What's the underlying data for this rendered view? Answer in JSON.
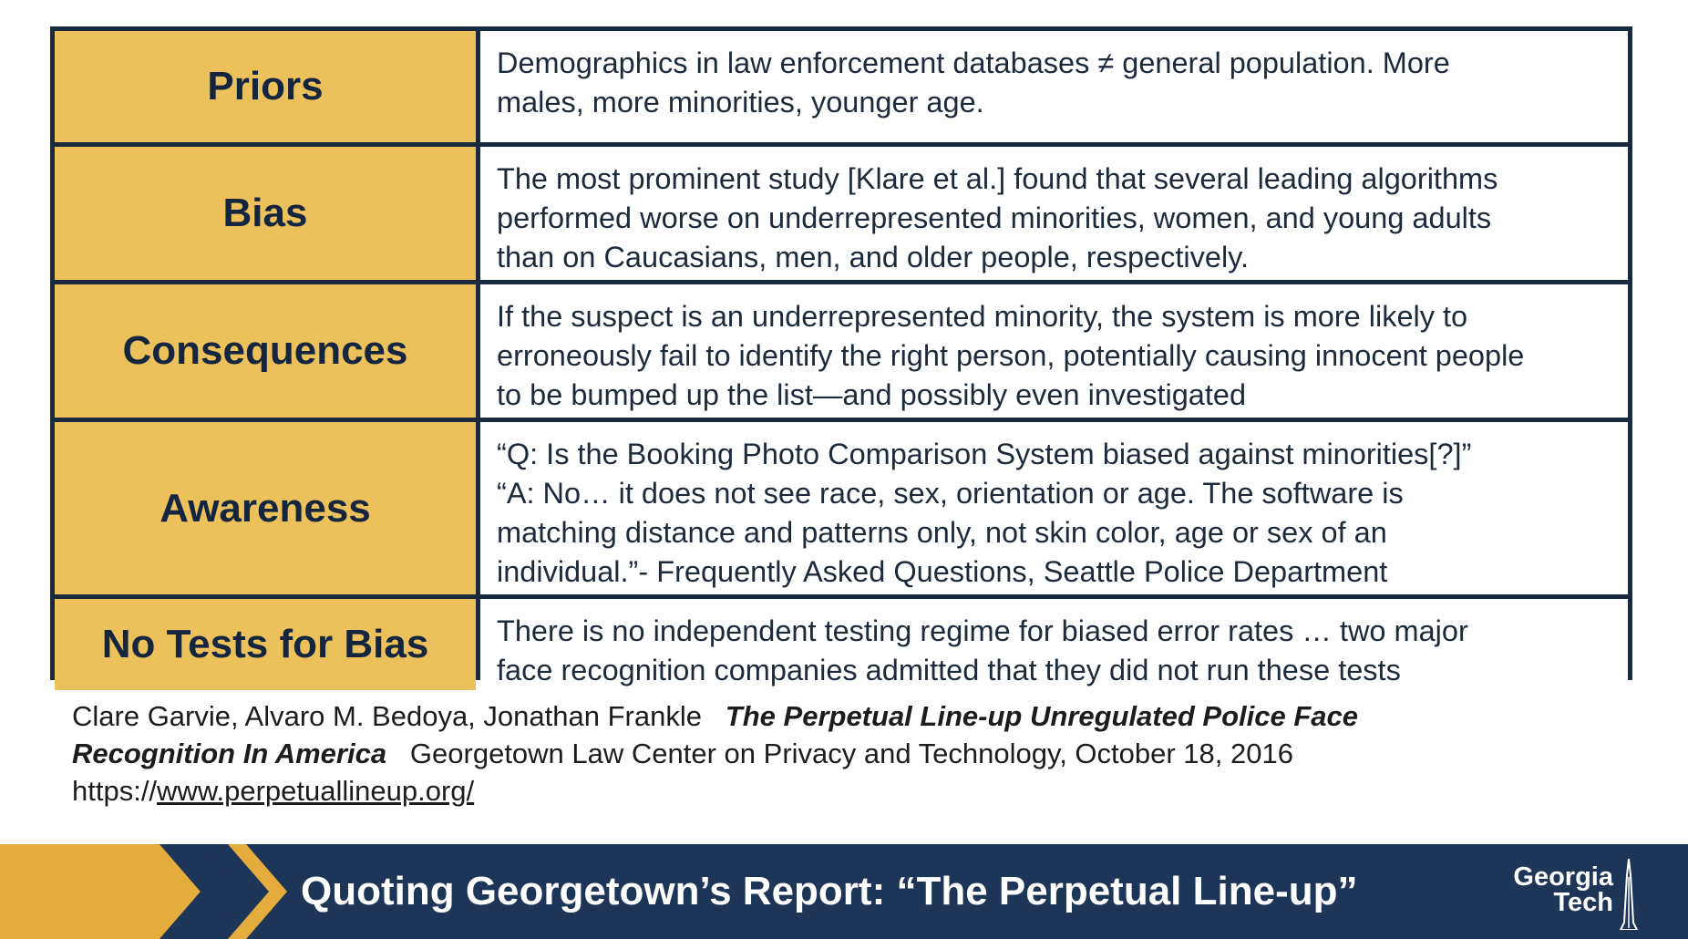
{
  "rows": [
    {
      "label": "Priors",
      "lines": [
        "Demographics in law enforcement databases ≠ general population. More",
        "males, more minorities, younger age."
      ]
    },
    {
      "label": "Bias",
      "lines": [
        "The most prominent study [Klare et al.] found that several leading algorithms",
        "performed worse on underrepresented minorities, women, and young adults",
        "than on Caucasians, men, and older people, respectively."
      ]
    },
    {
      "label": "Consequences",
      "lines": [
        "If the suspect is an underrepresented minority, the system is more likely to",
        "erroneously fail to identify the right person, potentially causing innocent people",
        "to be bumped up the list—and possibly even investigated"
      ]
    },
    {
      "label": "Awareness",
      "lines": [
        "“Q: Is the Booking Photo Comparison System biased against minorities[?]”",
        "“A: No… it does not see race, sex, orientation or age. The software is",
        "matching distance and patterns only,  not skin color, age or sex of an",
        "individual.”- Frequently Asked Questions, Seattle Police Department"
      ]
    },
    {
      "label": "No Tests for Bias",
      "lines": [
        "There is no independent testing regime for biased error rates … two major",
        "face recognition companies admitted that they did not run these tests"
      ]
    }
  ],
  "citation": {
    "authors": "Clare Garvie, Alvaro M. Bedoya, Jonathan Frankle",
    "title_part1": "The Perpetual Line-up Unregulated Police Face",
    "title_part2": "Recognition In America",
    "publisher": "Georgetown Law Center on Privacy and Technology, October 18, 2016",
    "url_prefix": "https://",
    "url_link": "www.perpetuallineup.org/"
  },
  "footer": {
    "title": "Quoting Georgetown’s Report: “The Perpetual Line-up”",
    "logo_line1": "Georgia",
    "logo_line2": "Tech",
    "colors": {
      "bar": "#1d3557",
      "gold": "#e3ac3c",
      "chevron_dark": "#1d3557"
    }
  }
}
